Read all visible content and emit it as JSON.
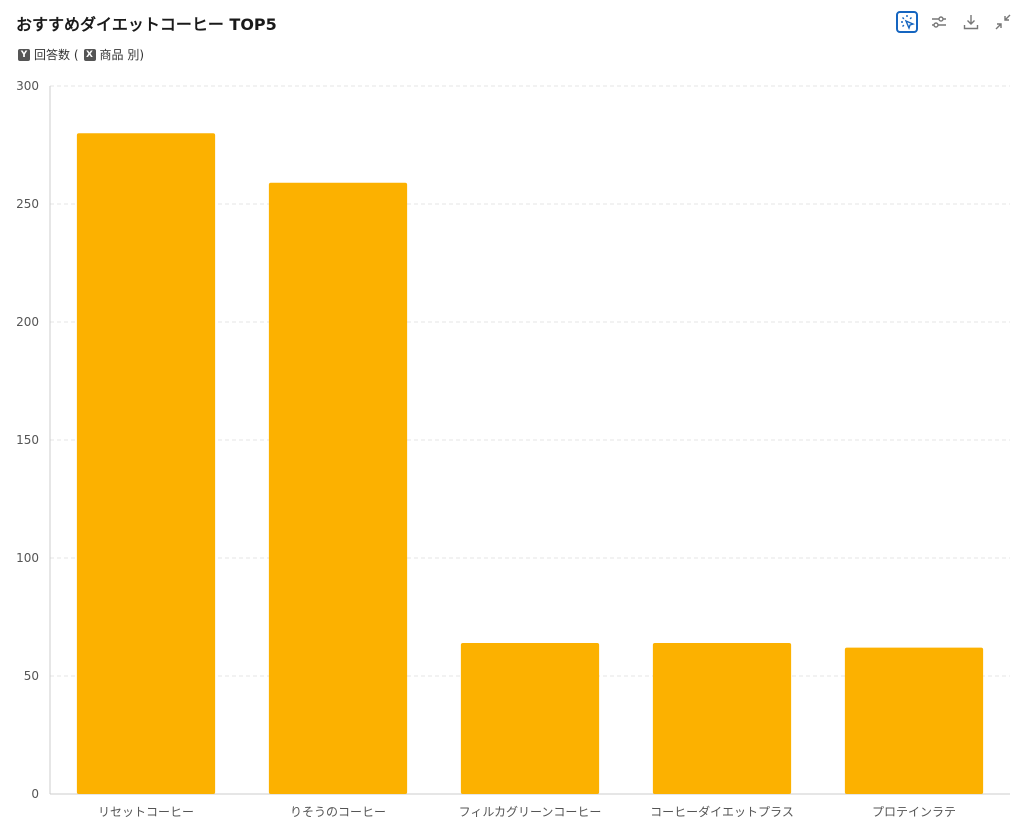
{
  "header": {
    "title": "おすすめダイエットコーヒー TOP5",
    "y_chip": "Y",
    "y_label": "回答数 (",
    "x_chip": "X",
    "x_label": "商品 別)"
  },
  "toolbar": {
    "items": [
      {
        "icon": "cursor-select-icon",
        "active": true
      },
      {
        "icon": "sliders-icon",
        "active": false
      },
      {
        "icon": "download-icon",
        "active": false
      },
      {
        "icon": "collapse-icon",
        "active": false
      }
    ]
  },
  "colors": {
    "bar": "#fcb100",
    "grid": "#e6e6e6",
    "axis": "#cccccc",
    "accent": "#1565c0"
  },
  "chart_data": {
    "type": "bar",
    "categories": [
      "リセットコーヒー",
      "りそうのコーヒー",
      "フィルカグリーンコーヒー",
      "コーヒーダイエットプラス",
      "プロテインラテ"
    ],
    "values": [
      280,
      259,
      64,
      64,
      62
    ],
    "ylim": [
      0,
      300
    ],
    "yticks": [
      0,
      50,
      100,
      150,
      200,
      250,
      300
    ],
    "grid": true,
    "legend": "none"
  }
}
